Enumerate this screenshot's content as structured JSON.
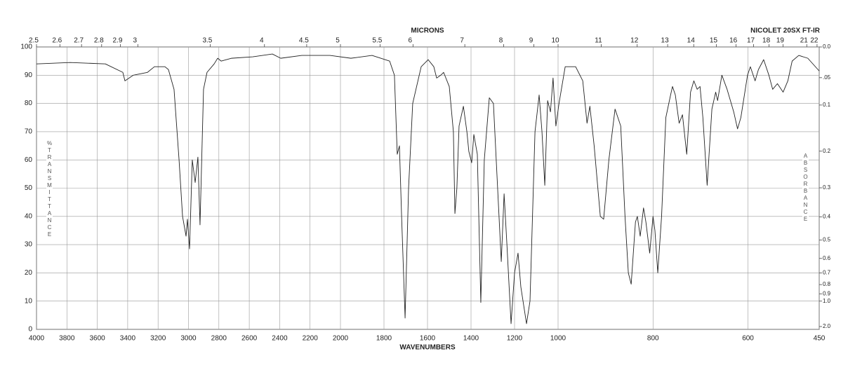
{
  "chart_data": {
    "type": "line",
    "title": "NICOLET 20SX FT-IR",
    "x_label": "WAVENUMBERS",
    "x2_label": "MICRONS",
    "y_label": "%TRANSMITTANCE",
    "y2_label": "ABSORBANCE",
    "color": "#222222",
    "grid": true,
    "xlim": [
      4000,
      450
    ],
    "xscale_breaks": [
      2000,
      1000
    ],
    "xticks": [
      4000,
      3800,
      3600,
      3400,
      3200,
      3000,
      2800,
      2600,
      2400,
      2200,
      2000,
      1800,
      1600,
      1400,
      1200,
      1000,
      800,
      600,
      450
    ],
    "x2ticks": [
      2.5,
      2.6,
      2.7,
      2.8,
      2.9,
      3,
      3.5,
      4,
      4.5,
      5,
      5.5,
      6,
      7,
      8,
      9,
      10,
      11,
      12,
      13,
      14,
      15,
      16,
      17,
      18,
      19,
      21,
      22
    ],
    "ylim": [
      0,
      100
    ],
    "yticks": [
      0,
      10,
      20,
      30,
      40,
      50,
      60,
      70,
      80,
      90,
      100
    ],
    "y2ticks": [
      {
        "value": 0,
        "label": "0.0"
      },
      {
        "value": 0.05,
        "label": ".05"
      },
      {
        "value": 0.1,
        "label": "0.1"
      },
      {
        "value": 0.2,
        "label": "0.2"
      },
      {
        "value": 0.3,
        "label": "0.3"
      },
      {
        "value": 0.4,
        "label": "0.4"
      },
      {
        "value": 0.5,
        "label": "0.5"
      },
      {
        "value": 0.6,
        "label": "0.6"
      },
      {
        "value": 0.7,
        "label": "0.7"
      },
      {
        "value": 0.8,
        "label": "0.8"
      },
      {
        "value": 0.9,
        "label": "0.9"
      },
      {
        "value": 1,
        "label": "1.0"
      },
      {
        "value": 2,
        "label": "2.0"
      }
    ],
    "x": [
      4000,
      3778,
      3547,
      3432,
      3418,
      3363,
      3270,
      3224,
      3155,
      3132,
      3095,
      3062,
      3039,
      3016,
      3007,
      2993,
      2975,
      2956,
      2938,
      2924,
      2901,
      2878,
      2831,
      2808,
      2785,
      2716,
      2577,
      2448,
      2393,
      2254,
      2069,
      1952,
      1855,
      1774,
      1752,
      1739,
      1729,
      1719,
      1703,
      1687,
      1668,
      1629,
      1597,
      1571,
      1558,
      1539,
      1526,
      1500,
      1481,
      1474,
      1465,
      1455,
      1435,
      1419,
      1410,
      1397,
      1387,
      1371,
      1355,
      1339,
      1316,
      1297,
      1281,
      1261,
      1248,
      1235,
      1216,
      1200,
      1184,
      1171,
      1145,
      1129,
      1106,
      1087,
      1074,
      1061,
      1048,
      1035,
      1023,
      1010,
      998,
      985,
      963,
      948,
      939,
      933,
      924,
      911,
      904,
      893,
      880,
      868,
      859,
      852,
      846,
      837,
      833,
      827,
      820,
      815,
      807,
      800,
      796,
      790,
      782,
      773,
      763,
      759,
      753,
      745,
      738,
      729,
      721,
      714,
      707,
      701,
      695,
      686,
      676,
      668,
      664,
      655,
      644,
      630,
      622,
      615,
      601,
      595,
      585,
      578,
      567,
      556,
      548,
      538,
      526,
      516,
      507,
      493,
      474,
      450
    ],
    "values": [
      94,
      94.5,
      94,
      91,
      88,
      90,
      91,
      93,
      93,
      92,
      85,
      60,
      40,
      33,
      39,
      28.5,
      60,
      52,
      61,
      37,
      85,
      91,
      94,
      96,
      95,
      96,
      96.5,
      97.5,
      96,
      97,
      97,
      96,
      97,
      95,
      90,
      62,
      65,
      40,
      4,
      50,
      80,
      93,
      95.5,
      93,
      89,
      90,
      91,
      86,
      70,
      41,
      50,
      72,
      79,
      70,
      63,
      59,
      69,
      62,
      9.5,
      60,
      82,
      80,
      55,
      24,
      48,
      30,
      2,
      20,
      27,
      15,
      2,
      10,
      70,
      83,
      70,
      51,
      81,
      77,
      89,
      72,
      80,
      93,
      93,
      88,
      73,
      79,
      65,
      40,
      39,
      60,
      78,
      72,
      40,
      20,
      16,
      38,
      40,
      33,
      43,
      38,
      27,
      40,
      35,
      20,
      40,
      75,
      83,
      86,
      83,
      73,
      76,
      62,
      84,
      88,
      85,
      86,
      75,
      51,
      78,
      84,
      81,
      90,
      85,
      77,
      71,
      75,
      90,
      93,
      88,
      92,
      95.5,
      90,
      85,
      87,
      84,
      88,
      95,
      97,
      96,
      91.5
    ]
  }
}
